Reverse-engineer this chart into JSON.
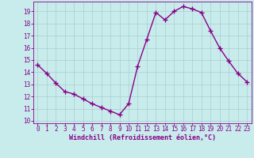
{
  "x": [
    0,
    1,
    2,
    3,
    4,
    5,
    6,
    7,
    8,
    9,
    10,
    11,
    12,
    13,
    14,
    15,
    16,
    17,
    18,
    19,
    20,
    21,
    22,
    23
  ],
  "y": [
    14.6,
    13.9,
    13.1,
    12.4,
    12.2,
    11.8,
    11.4,
    11.1,
    10.8,
    10.5,
    11.4,
    14.5,
    16.7,
    18.9,
    18.3,
    19.0,
    19.4,
    19.2,
    18.9,
    17.4,
    16.0,
    14.9,
    13.9,
    13.2
  ],
  "line_color": "#880088",
  "marker": "+",
  "marker_size": 4,
  "bg_color": "#c8ecec",
  "grid_color": "#aacccc",
  "xlabel": "Windchill (Refroidissement éolien,°C)",
  "xlabel_color": "#880088",
  "tick_color": "#880088",
  "spine_color": "#880088",
  "ylim": [
    9.8,
    19.8
  ],
  "xlim": [
    -0.5,
    23.5
  ],
  "yticks": [
    10,
    11,
    12,
    13,
    14,
    15,
    16,
    17,
    18,
    19
  ],
  "xticks": [
    0,
    1,
    2,
    3,
    4,
    5,
    6,
    7,
    8,
    9,
    10,
    11,
    12,
    13,
    14,
    15,
    16,
    17,
    18,
    19,
    20,
    21,
    22,
    23
  ],
  "tick_fontsize": 5.5,
  "xlabel_fontsize": 6.0,
  "linewidth": 1.0
}
